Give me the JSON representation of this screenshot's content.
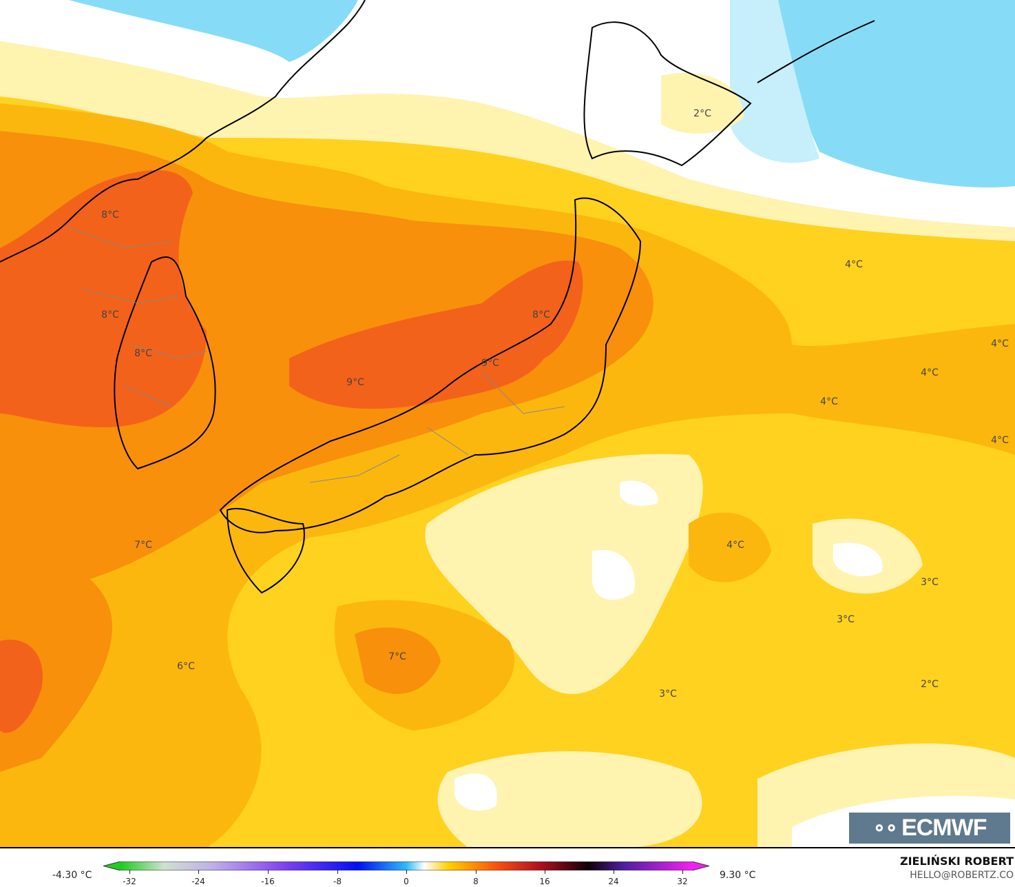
{
  "map": {
    "variable_unit": "°C",
    "labels": [
      "2°C",
      "8°C",
      "4°C",
      "8°C",
      "8°C",
      "4°C",
      "9°C",
      "8°C",
      "4°C",
      "9°C",
      "4°C",
      "4°C",
      "7°C",
      "4°C",
      "3°C",
      "3°C",
      "7°C",
      "6°C",
      "2°C",
      "3°C"
    ],
    "colors": {
      "ocean_cold": "#7fd8f6",
      "white": "#ffffff",
      "pale_yellow": "#fff3b0",
      "yellow": "#ffd21f",
      "light_orange": "#fdb00c",
      "orange": "#f98a0c",
      "red_orange": "#f35a10",
      "coast": "#000000",
      "border": "#888888"
    }
  },
  "logo": {
    "text": "ECMWF"
  },
  "legend": {
    "min_label": "-4.30 °C",
    "max_label": "9.30 °C",
    "ticks": [
      "-32",
      "-24",
      "-16",
      "-8",
      "0",
      "8",
      "16",
      "24",
      "32"
    ]
  },
  "credit": {
    "author": "ZIELIŃSKI ROBERT",
    "email": "HELLO@ROBERTZ.CO"
  }
}
